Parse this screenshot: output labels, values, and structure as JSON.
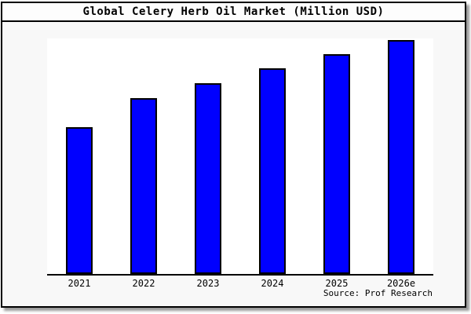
{
  "title": "Global Celery Herb Oil Market (Million USD)",
  "source": "Source: Prof Research",
  "colors": {
    "bar_fill": "#0000ff",
    "bar_border": "#000000",
    "axis": "#000000",
    "plot_background": "#ffffff",
    "page_background": "#f8f8f8"
  },
  "chart_data": {
    "type": "bar",
    "title": "Global Celery Herb Oil Market (Million USD)",
    "categories": [
      "2021",
      "2022",
      "2023",
      "2024",
      "2025",
      "2026e"
    ],
    "values": [
      62.8,
      75.3,
      81.5,
      87.9,
      94.0,
      100.0
    ],
    "value_note": "No y-axis, gridlines or data labels are shown; values are relative bar heights with 2026e = 100",
    "xlabel": "",
    "ylabel": "",
    "ylim": [
      0,
      100
    ],
    "legend_visible": false,
    "gridlines": false,
    "y_axis_visible": false,
    "bar_color": "#0000ff",
    "bar_border_color": "#000000",
    "source": "Source: Prof Research"
  }
}
